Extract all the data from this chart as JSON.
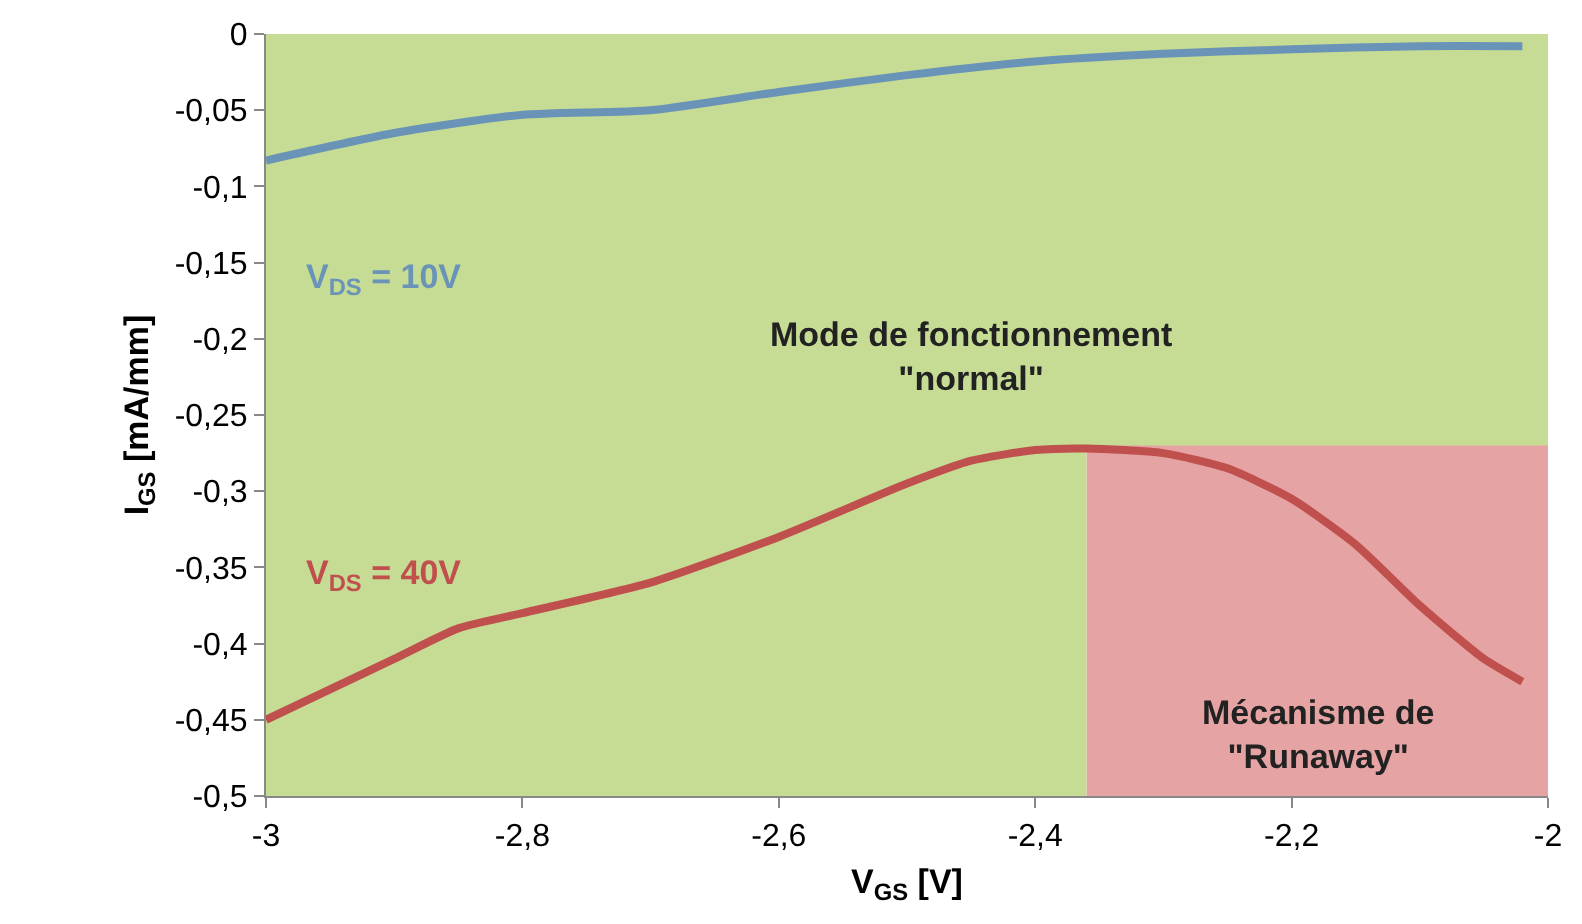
{
  "chart_data": {
    "type": "line",
    "xlabel": "V$_{GS}$ [V]",
    "ylabel": "I$_{GS}$ [mA/mm]",
    "xlim": [
      -3,
      -2
    ],
    "ylim": [
      -0.5,
      0
    ],
    "xticks": [
      -3,
      {
        "value": -2.8,
        "label": "-2,8"
      },
      {
        "value": -2.6,
        "label": "-2,6"
      },
      {
        "value": -2.4,
        "label": "-2,4"
      },
      {
        "value": -2.2,
        "label": "-2,2"
      },
      -2
    ],
    "yticks": [
      {
        "value": -0.5,
        "label": "-0,5"
      },
      {
        "value": -0.45,
        "label": "-0,45"
      },
      {
        "value": -0.4,
        "label": "-0,4"
      },
      {
        "value": -0.35,
        "label": "-0,35"
      },
      {
        "value": -0.3,
        "label": "-0,3"
      },
      {
        "value": -0.25,
        "label": "-0,25"
      },
      {
        "value": -0.2,
        "label": "-0,2"
      },
      {
        "value": -0.15,
        "label": "-0,15"
      },
      {
        "value": -0.1,
        "label": "-0,1"
      },
      {
        "value": -0.05,
        "label": "-0,05"
      },
      0
    ],
    "grid": false,
    "legend": false,
    "marker": "none",
    "line_style": "solid",
    "bands": [
      {
        "axis": "x",
        "from": -2.36,
        "to": -2,
        "label": "Mécanisme de\n\"Runaway\"",
        "color": "#e6a3a3"
      },
      {
        "axis": "x",
        "from": -3,
        "to": -2.36,
        "color": "#c6dc94"
      },
      {
        "axis": "y",
        "from": -0.27,
        "to": 0,
        "label": "Mode de fonctionnement\n\"normal\"",
        "color": "#c6dc94"
      }
    ],
    "series": [
      {
        "name": "V$_{DS}$ = 10V",
        "color": "#6a93b8",
        "x": [
          -3,
          -2.9,
          -2.8,
          -2.7,
          -2.6,
          -2.5,
          -2.4,
          -2.3,
          -2.2,
          -2.1,
          -2.02
        ],
        "values": [
          -0.083,
          -0.065,
          -0.053,
          -0.05,
          -0.038,
          -0.027,
          -0.018,
          -0.013,
          -0.01,
          -0.008,
          -0.008
        ]
      },
      {
        "name": "V$_{DS}$ = 40V",
        "color": "#c0504d",
        "x": [
          -3,
          -2.9,
          -2.85,
          -2.8,
          -2.7,
          -2.6,
          -2.5,
          -2.45,
          -2.4,
          -2.36,
          -2.3,
          -2.25,
          -2.2,
          -2.15,
          -2.1,
          -2.05,
          -2.02
        ],
        "values": [
          -0.45,
          -0.41,
          -0.39,
          -0.38,
          -0.36,
          -0.33,
          -0.295,
          -0.28,
          -0.273,
          -0.272,
          -0.275,
          -0.285,
          -0.305,
          -0.335,
          -0.375,
          -0.41,
          -0.425
        ]
      }
    ]
  }
}
